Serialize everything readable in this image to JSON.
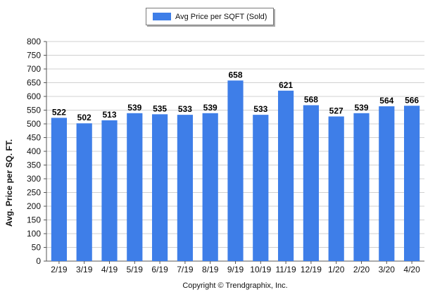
{
  "chart_data": {
    "type": "bar",
    "categories": [
      "2/19",
      "3/19",
      "4/19",
      "5/19",
      "6/19",
      "7/19",
      "8/19",
      "9/19",
      "10/19",
      "11/19",
      "12/19",
      "1/20",
      "2/20",
      "3/20",
      "4/20"
    ],
    "series": [
      {
        "name": "Avg Price per SQFT (Sold)",
        "values": [
          522,
          502,
          513,
          539,
          535,
          533,
          539,
          658,
          533,
          621,
          568,
          527,
          539,
          564,
          566
        ]
      }
    ],
    "ylabel": "Avg. Price per SQ. FT.",
    "xlabel": "",
    "ylim": [
      0,
      800
    ],
    "yticks": [
      0,
      50,
      100,
      150,
      200,
      250,
      300,
      350,
      400,
      450,
      500,
      550,
      600,
      650,
      700,
      750,
      800
    ],
    "grid": true,
    "legend_position": "top-center",
    "bar_color": "#3e7ee8"
  },
  "footer": {
    "copyright": "Copyright © Trendgraphix, Inc."
  }
}
